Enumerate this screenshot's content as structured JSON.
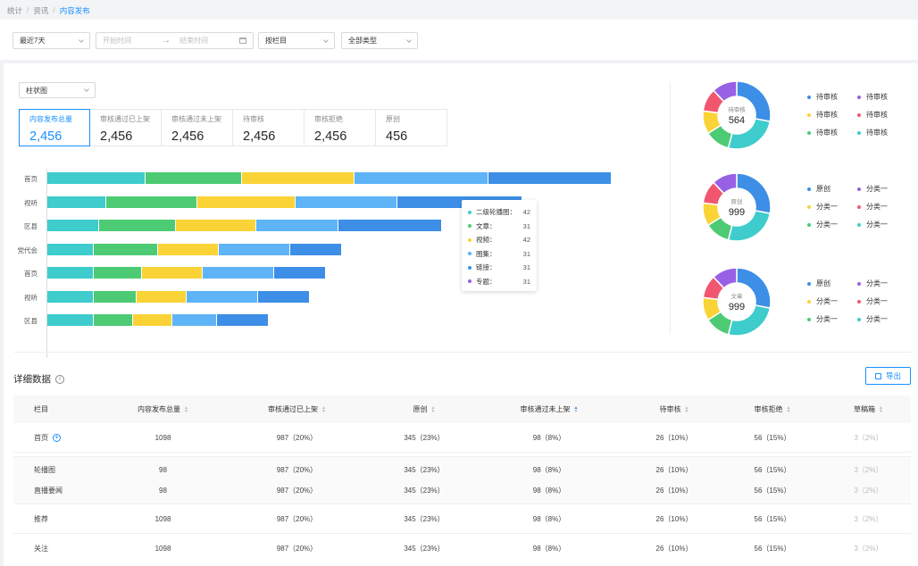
{
  "breadcrumb": [
    "统计",
    "资讯",
    "内容发布"
  ],
  "filters": {
    "period": "最近7天",
    "start_placeholder": "开始时间",
    "end_placeholder": "结束时间",
    "column": "按栏目",
    "type": "全部类型"
  },
  "chart_type": "柱状图",
  "stats": [
    {
      "label": "内容发布总量",
      "value": "2,456"
    },
    {
      "label": "审核通过已上架",
      "value": "2,456"
    },
    {
      "label": "审核通过未上架",
      "value": "2,456"
    },
    {
      "label": "待审核",
      "value": "2,456"
    },
    {
      "label": "审核拒绝",
      "value": "2,456"
    },
    {
      "label": "原创",
      "value": "456"
    }
  ],
  "colors": {
    "accent": "#1890ff",
    "series": [
      "#3ecccc",
      "#4ccb74",
      "#fad337",
      "#5eb4f6",
      "#3d8ee6",
      "#9860e5",
      "#f0576f"
    ]
  },
  "chart_data": {
    "type": "bar",
    "orientation": "horizontal",
    "stacked": true,
    "categories": [
      "首页",
      "视听",
      "区县",
      "党代会",
      "首页",
      "视听",
      "区县"
    ],
    "series": [
      {
        "name": "二级轮播图",
        "values": [
          55,
          33,
          29,
          26,
          26,
          26,
          26
        ]
      },
      {
        "name": "文章",
        "values": [
          54,
          51,
          43,
          36,
          27,
          24,
          22
        ]
      },
      {
        "name": "视频",
        "values": [
          63,
          55,
          45,
          34,
          34,
          28,
          22
        ]
      },
      {
        "name": "图集",
        "values": [
          75,
          57,
          46,
          40,
          40,
          40,
          25
        ]
      },
      {
        "name": "链接",
        "values": [
          69,
          70,
          58,
          29,
          29,
          29,
          29
        ]
      }
    ],
    "tooltip": {
      "items": [
        {
          "name": "二级轮播图",
          "value": "42"
        },
        {
          "name": "文章",
          "value": "31"
        },
        {
          "name": "视频",
          "value": "42"
        },
        {
          "name": "图集",
          "value": "31"
        },
        {
          "name": "链接",
          "value": "31"
        },
        {
          "name": "专题",
          "value": "31"
        }
      ]
    }
  },
  "donuts": [
    {
      "label": "待审核",
      "total": "564",
      "slices": [
        28,
        26,
        12,
        11,
        11,
        12
      ],
      "slice_colors": [
        "#3d8ee6",
        "#3ecccc",
        "#4ccb74",
        "#fad337",
        "#f0576f",
        "#9860e5"
      ],
      "legend": [
        {
          "name": "待审核",
          "color": "#3d8ee6"
        },
        {
          "name": "待审核",
          "color": "#9860e5"
        },
        {
          "name": "待审核",
          "color": "#fad337"
        },
        {
          "name": "待审核",
          "color": "#f0576f"
        },
        {
          "name": "待审核",
          "color": "#4ccb74"
        },
        {
          "name": "待审核",
          "color": "#3ecccc"
        }
      ]
    },
    {
      "label": "原创",
      "total": "999",
      "slices": [
        28,
        26,
        12,
        11,
        11,
        12
      ],
      "slice_colors": [
        "#3d8ee6",
        "#3ecccc",
        "#4ccb74",
        "#fad337",
        "#f0576f",
        "#9860e5"
      ],
      "legend": [
        {
          "name": "原创",
          "color": "#3d8ee6"
        },
        {
          "name": "分类一",
          "color": "#9860e5"
        },
        {
          "name": "分类一",
          "color": "#fad337"
        },
        {
          "name": "分类一",
          "color": "#f0576f"
        },
        {
          "name": "分类一",
          "color": "#4ccb74"
        },
        {
          "name": "分类一",
          "color": "#3ecccc"
        }
      ]
    },
    {
      "label": "文章",
      "total": "999",
      "slices": [
        28,
        26,
        12,
        11,
        11,
        12
      ],
      "slice_colors": [
        "#3d8ee6",
        "#3ecccc",
        "#4ccb74",
        "#fad337",
        "#f0576f",
        "#9860e5"
      ],
      "legend": [
        {
          "name": "原创",
          "color": "#3d8ee6"
        },
        {
          "name": "分类一",
          "color": "#9860e5"
        },
        {
          "name": "分类一",
          "color": "#fad337"
        },
        {
          "name": "分类一",
          "color": "#f0576f"
        },
        {
          "name": "分类一",
          "color": "#4ccb74"
        },
        {
          "name": "分类一",
          "color": "#3ecccc"
        }
      ]
    }
  ],
  "detail": {
    "title": "详细数据",
    "export_label": "导出",
    "columns": [
      "栏目",
      "内容发布总量",
      "审核通过已上架",
      "原创",
      "审核通过未上架",
      "待审核",
      "审核拒绝",
      "草稿箱"
    ],
    "rows": [
      {
        "cells": [
          "首页",
          "1098",
          "987（20%）",
          "345（23%）",
          "98（8%）",
          "26（10%）",
          "56（15%）",
          "3（2%）"
        ],
        "expandable": true
      },
      {
        "cells": [
          "轮播图",
          "98",
          "987（20%）",
          "345（23%）",
          "98（8%）",
          "26（10%）",
          "56（15%）",
          "3（2%）"
        ],
        "child": true
      },
      {
        "cells": [
          "直播要闻",
          "98",
          "987（20%）",
          "345（23%）",
          "98（8%）",
          "26（10%）",
          "56（15%）",
          "3（2%）"
        ],
        "child": true
      },
      {
        "cells": [
          "推荐",
          "1098",
          "987（20%）",
          "345（23%）",
          "98（8%）",
          "26（10%）",
          "56（15%）",
          "3（2%）"
        ]
      },
      {
        "cells": [
          "关注",
          "1098",
          "987（20%）",
          "345（23%）",
          "98（8%）",
          "26（10%）",
          "56（15%）",
          "3（2%）"
        ]
      }
    ]
  }
}
